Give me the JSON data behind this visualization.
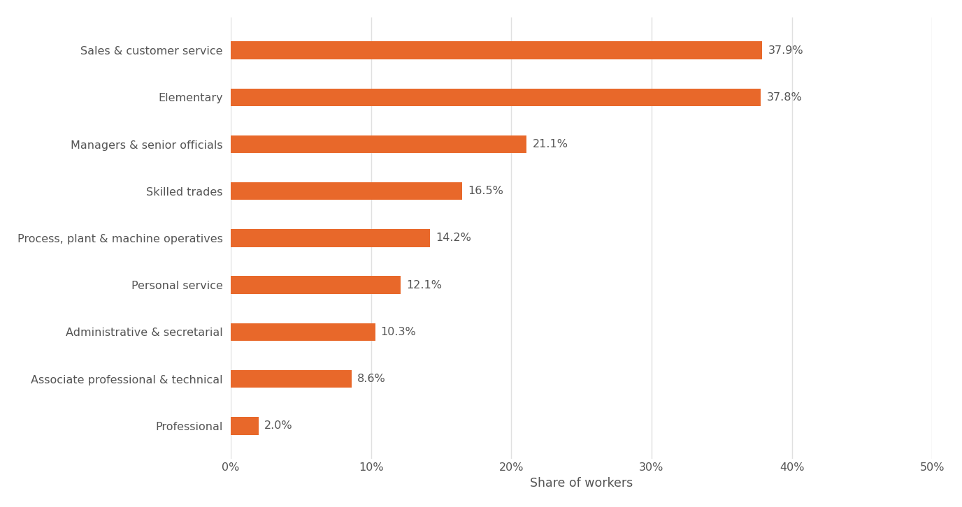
{
  "categories": [
    "Sales & customer service",
    "Elementary",
    "Managers & senior officials",
    "Skilled trades",
    "Process, plant & machine operatives",
    "Personal service",
    "Administrative & secretarial",
    "Associate professional & technical",
    "Professional"
  ],
  "values": [
    37.9,
    37.8,
    21.1,
    16.5,
    14.2,
    12.1,
    10.3,
    8.6,
    2.0
  ],
  "labels": [
    "37.9%",
    "37.8%",
    "21.1%",
    "16.5%",
    "14.2%",
    "12.1%",
    "10.3%",
    "8.6%",
    "2.0%"
  ],
  "bar_color": "#e8682a",
  "xlabel": "Share of workers",
  "xlim": [
    0,
    50
  ],
  "xticks": [
    0,
    10,
    20,
    30,
    40,
    50
  ],
  "xtick_labels": [
    "0%",
    "10%",
    "20%",
    "30%",
    "40%",
    "50%"
  ],
  "background_color": "#ffffff",
  "grid_color": "#e0e0e0",
  "label_color": "#555555",
  "bar_height": 0.38,
  "label_fontsize": 11.5,
  "tick_fontsize": 11.5,
  "xlabel_fontsize": 12.5
}
